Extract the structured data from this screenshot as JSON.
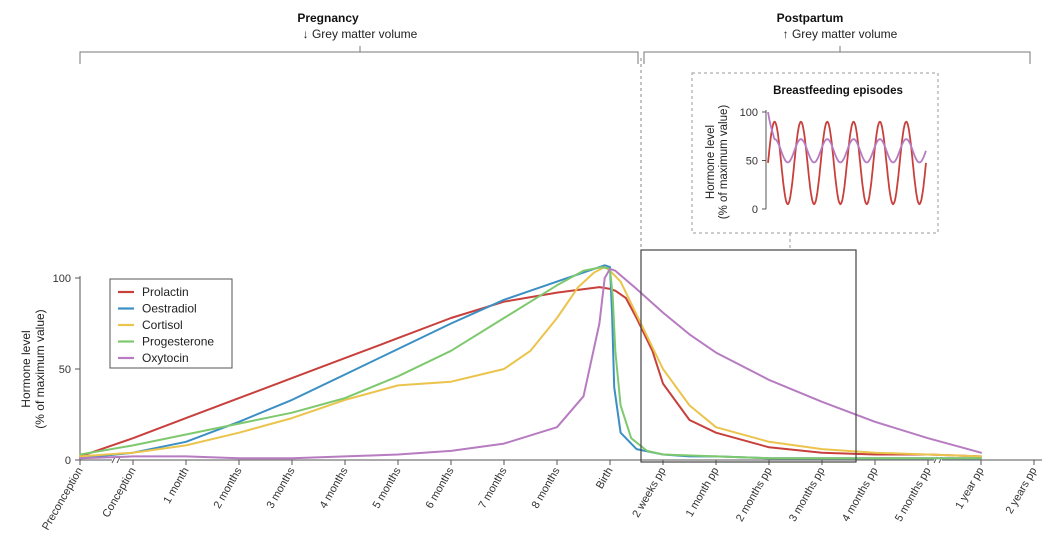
{
  "phases": {
    "pregnancy": {
      "title": "Pregnancy",
      "subtitle": "↓ Grey matter volume"
    },
    "postpartum": {
      "title": "Postpartum",
      "subtitle": "↑ Grey matter volume"
    }
  },
  "colors": {
    "prolactin": "#c8403c",
    "oestradiol": "#3b8fc4",
    "cortisol": "#eac44c",
    "progesterone": "#7ec96e",
    "oxytocin": "#b77bc1",
    "axis": "#555555",
    "frame": "#444444",
    "inset_border": "#999999"
  },
  "chart_data": [
    {
      "type": "line",
      "ylabel_line1": "Hormone level",
      "ylabel_line2": "(% of maximum value)",
      "ylim": [
        0,
        100
      ],
      "yticks": [
        0,
        50,
        100
      ],
      "categories": [
        "Preconception",
        "Conception",
        "1 month",
        "2 months",
        "3 months",
        "4 months",
        "5 months",
        "6 months",
        "7 months",
        "8 months",
        "Birth",
        "2 weeks pp",
        "1 month pp",
        "2 months pp",
        "3 months pp",
        "4 months pp",
        "5 months pp",
        "1 year pp",
        "2 years pp"
      ],
      "legend": [
        "Prolactin",
        "Oestradiol",
        "Cortisol",
        "Progesterone",
        "Oxytocin"
      ],
      "legend_position": "top-left",
      "series": [
        {
          "name": "Prolactin",
          "x": [
            0,
            1,
            2,
            3,
            4,
            5,
            6,
            7,
            8,
            9,
            9.8,
            10,
            10.1,
            10.3,
            10.5,
            10.8,
            11,
            11.5,
            12,
            13,
            14,
            15,
            16,
            17
          ],
          "y": [
            2,
            12,
            23,
            34,
            45,
            56,
            67,
            78,
            87,
            92,
            95,
            94,
            93,
            89,
            78,
            60,
            42,
            22,
            15,
            7,
            4,
            3,
            3,
            2
          ]
        },
        {
          "name": "Oestradiol",
          "x": [
            0,
            1,
            2,
            3,
            4,
            5,
            6,
            7,
            8,
            9,
            9.6,
            9.9,
            10,
            10.04,
            10.08,
            10.2,
            10.5,
            11,
            11.5,
            12,
            13,
            14,
            15,
            16,
            17
          ],
          "y": [
            1,
            4,
            10,
            21,
            33,
            47,
            61,
            75,
            88,
            98,
            104,
            107,
            106,
            80,
            40,
            15,
            6,
            3,
            2,
            2,
            1,
            1,
            1,
            1,
            1
          ]
        },
        {
          "name": "Cortisol",
          "x": [
            0,
            1,
            2,
            3,
            4,
            5,
            6,
            7,
            8,
            8.5,
            9,
            9.4,
            9.7,
            9.9,
            10,
            10.2,
            10.5,
            11,
            11.5,
            12,
            13,
            14,
            15,
            16,
            17
          ],
          "y": [
            2,
            4,
            8,
            15,
            23,
            33,
            41,
            43,
            50,
            60,
            78,
            95,
            103,
            106,
            104,
            98,
            80,
            50,
            30,
            18,
            10,
            6,
            4,
            3,
            2
          ]
        },
        {
          "name": "Progesterone",
          "x": [
            0,
            1,
            2,
            3,
            4,
            5,
            6,
            7,
            8,
            9,
            9.5,
            9.85,
            10,
            10.05,
            10.1,
            10.2,
            10.4,
            10.7,
            11,
            12,
            13,
            14,
            15,
            16,
            17
          ],
          "y": [
            3,
            8,
            14,
            20,
            26,
            34,
            46,
            60,
            78,
            96,
            104,
            106,
            105,
            90,
            60,
            30,
            12,
            5,
            3,
            2,
            1,
            1,
            1,
            1,
            1
          ]
        },
        {
          "name": "Oxytocin",
          "x": [
            0,
            1,
            2,
            3,
            4,
            5,
            6,
            7,
            8,
            9,
            9.5,
            9.8,
            9.9,
            10,
            10.1,
            10.5,
            11,
            11.5,
            12,
            13,
            14,
            15,
            16,
            17
          ],
          "y": [
            1,
            2,
            2,
            1,
            1,
            2,
            3,
            5,
            9,
            18,
            35,
            75,
            100,
            105,
            104,
            94,
            81,
            69,
            59,
            44,
            32,
            21,
            12,
            4
          ]
        }
      ]
    },
    {
      "type": "line",
      "title": "Breastfeeding episodes",
      "ylabel_line1": "Hormone level",
      "ylabel_line2": "(% of maximum value)",
      "ylim": [
        0,
        100
      ],
      "yticks": [
        0,
        50,
        100
      ],
      "series": [
        {
          "name": "Prolactin",
          "cycles": 6,
          "peak": 90,
          "trough": 5
        },
        {
          "name": "Oxytocin",
          "cycles": 6,
          "start": 100,
          "peak": 72,
          "trough": 48
        }
      ]
    }
  ]
}
